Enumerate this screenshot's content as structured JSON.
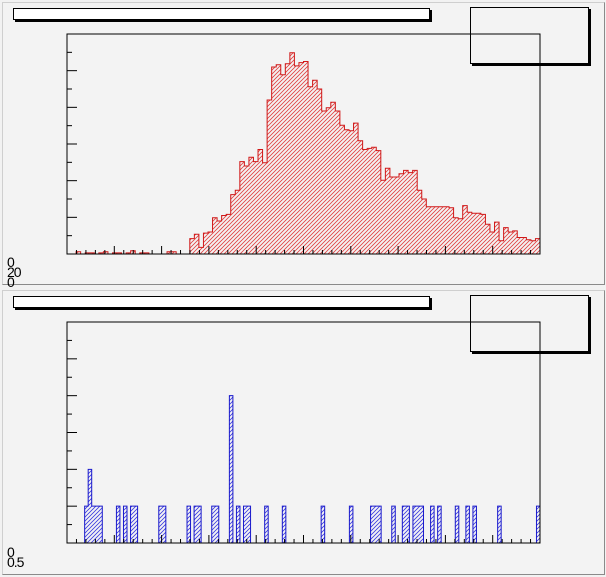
{
  "pads": [
    {
      "title": "",
      "stats": "",
      "color": "#d01818",
      "hatch_color": "#e04040",
      "ylabel_lines": [
        "0",
        "20",
        "0"
      ],
      "chart_data": {
        "type": "bar",
        "ylim": [
          0,
          200
        ],
        "values": [
          0,
          0,
          2,
          0,
          1,
          1,
          0,
          1,
          2,
          0,
          1,
          1,
          0,
          1,
          3,
          0,
          1,
          1,
          0,
          0,
          0,
          0,
          2,
          2,
          0,
          0,
          0,
          14,
          18,
          6,
          19,
          20,
          33,
          30,
          35,
          36,
          54,
          58,
          84,
          80,
          88,
          84,
          95,
          83,
          140,
          170,
          172,
          163,
          173,
          183,
          171,
          174,
          175,
          152,
          158,
          150,
          130,
          133,
          138,
          130,
          117,
          113,
          112,
          119,
          103,
          95,
          96,
          97,
          94,
          67,
          78,
          70,
          70,
          73,
          76,
          74,
          76,
          58,
          50,
          43,
          43,
          43,
          43,
          43,
          42,
          33,
          32,
          44,
          38,
          37,
          37,
          36,
          27,
          20,
          29,
          12,
          24,
          20,
          21,
          15,
          15,
          13,
          12,
          14
        ]
      }
    },
    {
      "title": "",
      "stats": "",
      "color": "#1a1acc",
      "hatch_color": "#3a3adf",
      "ylabel_lines": [
        "0",
        "0.5"
      ],
      "chart_data": {
        "type": "bar",
        "ylim": [
          0,
          6
        ],
        "values": [
          0,
          0,
          0,
          0,
          0,
          1,
          2,
          1,
          1,
          1,
          0,
          0,
          0,
          0,
          1,
          0,
          1,
          0,
          1,
          1,
          0,
          0,
          0,
          0,
          0,
          0,
          1,
          1,
          0,
          0,
          0,
          0,
          0,
          0,
          1,
          0,
          1,
          1,
          0,
          0,
          0,
          1,
          1,
          0,
          0,
          0,
          4,
          0,
          1,
          0,
          1,
          1,
          0,
          0,
          0,
          0,
          1,
          0,
          0,
          0,
          0,
          1,
          0,
          0,
          0,
          0,
          0,
          0,
          0,
          0,
          0,
          0,
          1,
          0,
          0,
          0,
          0,
          0,
          0,
          0,
          1,
          0,
          0,
          0,
          0,
          0,
          1,
          1,
          1,
          0,
          0,
          0,
          1,
          0,
          0,
          1,
          1,
          0,
          1,
          1,
          1,
          0,
          0,
          1,
          0,
          1,
          0,
          0,
          0,
          0,
          1,
          0,
          0,
          1,
          0,
          1,
          0,
          0,
          0,
          0,
          0,
          0,
          1,
          0,
          0,
          0,
          0,
          0,
          0,
          0,
          0,
          0,
          0,
          1
        ]
      }
    }
  ]
}
